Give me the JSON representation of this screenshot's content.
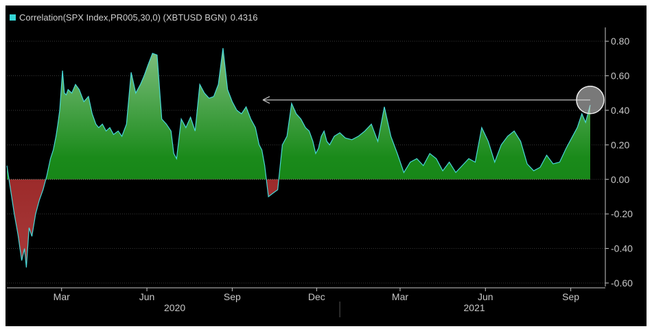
{
  "legend": {
    "label": "Correlation(SPX Index,PR005,30,0) (XBTUSD BGN)",
    "value": "0.4316",
    "color": "#35d5d5"
  },
  "colors": {
    "background": "#000000",
    "positive_fill": "#1a8a1a",
    "negative_fill": "#8a1414",
    "line": "#48d8d8",
    "axis": "#c8c8c8",
    "grid": "#3a3a3a",
    "annotation": "#c0c0c0"
  },
  "chart_data": {
    "type": "area",
    "title": "",
    "xlabel": "",
    "ylabel": "",
    "y_axis_position": "right",
    "ylim": [
      -0.62,
      0.88
    ],
    "yticks": [
      "0.80",
      "0.60",
      "0.40",
      "0.20",
      "0.00",
      "-0.20",
      "-0.40",
      "-0.60"
    ],
    "ytick_values": [
      0.8,
      0.6,
      0.4,
      0.2,
      0,
      -0.2,
      -0.4,
      -0.6
    ],
    "x_start": "2020-01-02",
    "x_end": "2021-09-22",
    "month_labels": [
      {
        "label": "Mar",
        "date": "2020-03-01"
      },
      {
        "label": "Jun",
        "date": "2020-06-01"
      },
      {
        "label": "Sep",
        "date": "2020-09-01"
      },
      {
        "label": "Dec",
        "date": "2020-12-01"
      },
      {
        "label": "Mar",
        "date": "2021-03-01"
      },
      {
        "label": "Jun",
        "date": "2021-06-01"
      },
      {
        "label": "Sep",
        "date": "2021-09-01"
      }
    ],
    "year_labels": [
      {
        "label": "2020",
        "date": "2020-07-01"
      },
      {
        "label": "2021",
        "date": "2021-05-20"
      }
    ],
    "year_divider": "2020-12-26",
    "series": [
      {
        "x": [
          "2020-01-02",
          "2020-01-06",
          "2020-01-10",
          "2020-01-14",
          "2020-01-18",
          "2020-01-21",
          "2020-01-23",
          "2020-01-26",
          "2020-01-29",
          "2020-02-02",
          "2020-02-06",
          "2020-02-10",
          "2020-02-14",
          "2020-02-18",
          "2020-02-21",
          "2020-02-24",
          "2020-02-26",
          "2020-02-28",
          "2020-03-02",
          "2020-03-04",
          "2020-03-06",
          "2020-03-08",
          "2020-03-12",
          "2020-03-16",
          "2020-03-20",
          "2020-03-25",
          "2020-03-30",
          "2020-04-03",
          "2020-04-07",
          "2020-04-10",
          "2020-04-14",
          "2020-04-18",
          "2020-04-22",
          "2020-04-26",
          "2020-05-01",
          "2020-05-05",
          "2020-05-10",
          "2020-05-15",
          "2020-05-20",
          "2020-05-25",
          "2020-05-29",
          "2020-06-02",
          "2020-06-07",
          "2020-06-12",
          "2020-06-17",
          "2020-06-22",
          "2020-06-27",
          "2020-06-30",
          "2020-07-03",
          "2020-07-08",
          "2020-07-13",
          "2020-07-18",
          "2020-07-23",
          "2020-07-28",
          "2020-08-02",
          "2020-08-07",
          "2020-08-12",
          "2020-08-17",
          "2020-08-22",
          "2020-08-27",
          "2020-09-01",
          "2020-09-06",
          "2020-09-11",
          "2020-09-16",
          "2020-09-21",
          "2020-09-26",
          "2020-09-30",
          "2020-10-03",
          "2020-10-06",
          "2020-10-10",
          "2020-10-15",
          "2020-10-20",
          "2020-10-25",
          "2020-10-30",
          "2020-11-04",
          "2020-11-09",
          "2020-11-14",
          "2020-11-19",
          "2020-11-23",
          "2020-11-27",
          "2020-11-30",
          "2020-12-03",
          "2020-12-06",
          "2020-12-09",
          "2020-12-12",
          "2020-12-15",
          "2020-12-20",
          "2020-12-26",
          "2021-01-01",
          "2021-01-08",
          "2021-01-15",
          "2021-01-22",
          "2021-01-29",
          "2021-02-05",
          "2021-02-12",
          "2021-02-19",
          "2021-02-26",
          "2021-03-05",
          "2021-03-12",
          "2021-03-19",
          "2021-03-26",
          "2021-04-02",
          "2021-04-09",
          "2021-04-16",
          "2021-04-23",
          "2021-04-30",
          "2021-05-07",
          "2021-05-14",
          "2021-05-21",
          "2021-05-28",
          "2021-06-04",
          "2021-06-11",
          "2021-06-18",
          "2021-06-25",
          "2021-07-02",
          "2021-07-09",
          "2021-07-16",
          "2021-07-23",
          "2021-07-30",
          "2021-08-06",
          "2021-08-13",
          "2021-08-20",
          "2021-08-27",
          "2021-09-03",
          "2021-09-08",
          "2021-09-13",
          "2021-09-17",
          "2021-09-22"
        ],
        "values": [
          0.08,
          -0.06,
          -0.2,
          -0.32,
          -0.47,
          -0.4,
          -0.51,
          -0.28,
          -0.33,
          -0.2,
          -0.12,
          -0.06,
          0.02,
          0.12,
          0.17,
          0.25,
          0.32,
          0.4,
          0.63,
          0.5,
          0.49,
          0.52,
          0.5,
          0.55,
          0.52,
          0.45,
          0.48,
          0.38,
          0.32,
          0.3,
          0.32,
          0.28,
          0.3,
          0.26,
          0.28,
          0.25,
          0.32,
          0.62,
          0.5,
          0.55,
          0.6,
          0.66,
          0.73,
          0.72,
          0.35,
          0.32,
          0.28,
          0.15,
          0.12,
          0.35,
          0.3,
          0.36,
          0.28,
          0.55,
          0.5,
          0.47,
          0.48,
          0.55,
          0.76,
          0.52,
          0.45,
          0.4,
          0.38,
          0.42,
          0.35,
          0.3,
          0.2,
          0.17,
          0.08,
          -0.1,
          -0.08,
          -0.06,
          0.2,
          0.25,
          0.44,
          0.38,
          0.35,
          0.3,
          0.28,
          0.22,
          0.15,
          0.18,
          0.25,
          0.28,
          0.22,
          0.2,
          0.25,
          0.27,
          0.24,
          0.23,
          0.25,
          0.28,
          0.32,
          0.22,
          0.42,
          0.25,
          0.15,
          0.04,
          0.1,
          0.12,
          0.08,
          0.15,
          0.12,
          0.05,
          0.1,
          0.04,
          0.08,
          0.12,
          0.1,
          0.3,
          0.22,
          0.1,
          0.2,
          0.25,
          0.28,
          0.22,
          0.09,
          0.05,
          0.07,
          0.14,
          0.09,
          0.1,
          0.18,
          0.25,
          0.3,
          0.38,
          0.33,
          0.43
        ]
      }
    ],
    "annotations": [
      {
        "type": "arrow",
        "from_date": "2021-09-22",
        "to_date": "2020-10-04",
        "y": 0.46
      },
      {
        "type": "circle",
        "date": "2021-09-22",
        "y": 0.46
      }
    ]
  }
}
